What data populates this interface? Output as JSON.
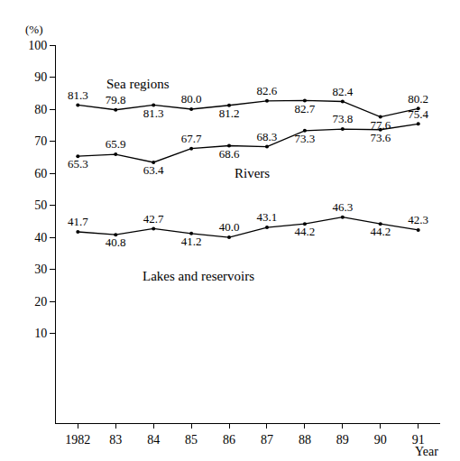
{
  "chart_data": {
    "type": "line",
    "ylabel": "(%)",
    "xlabel": "Year",
    "categories": [
      "1982",
      "83",
      "84",
      "85",
      "86",
      "87",
      "88",
      "89",
      "90",
      "91"
    ],
    "series": [
      {
        "name": "Sea regions",
        "color": "#000000",
        "marker": "circle",
        "line_style": "solid",
        "values": [
          81.3,
          79.8,
          81.3,
          80.0,
          81.2,
          82.6,
          82.7,
          82.4,
          77.6,
          80.2
        ],
        "value_labels": [
          "81.3",
          "79.8",
          "81.3",
          "80.0",
          "81.2",
          "82.6",
          "82.7",
          "82.4",
          "77.6",
          "80.2"
        ]
      },
      {
        "name": "Rivers",
        "color": "#000000",
        "marker": "circle",
        "line_style": "solid",
        "values": [
          65.3,
          65.9,
          63.4,
          67.7,
          68.6,
          68.3,
          73.3,
          73.8,
          73.6,
          75.4
        ],
        "value_labels": [
          "65.3",
          "65.9",
          "63.4",
          "67.7",
          "68.6",
          "68.3",
          "73.3",
          "73.8",
          "73.6",
          "75.4"
        ]
      },
      {
        "name": "Lakes and reservoirs",
        "color": "#000000",
        "marker": "circle",
        "line_style": "solid",
        "values": [
          41.7,
          40.8,
          42.7,
          41.2,
          40.0,
          43.1,
          44.2,
          46.3,
          44.2,
          42.3
        ],
        "value_labels": [
          "41.7",
          "40.8",
          "42.7",
          "41.2",
          "40.0",
          "43.1",
          "44.2",
          "46.3",
          "44.2",
          "42.3"
        ]
      }
    ],
    "ylim": [
      -18,
      100
    ],
    "yticks": [
      10,
      20,
      30,
      40,
      50,
      60,
      70,
      80,
      90,
      100
    ],
    "grid": false,
    "data_labels": true
  }
}
